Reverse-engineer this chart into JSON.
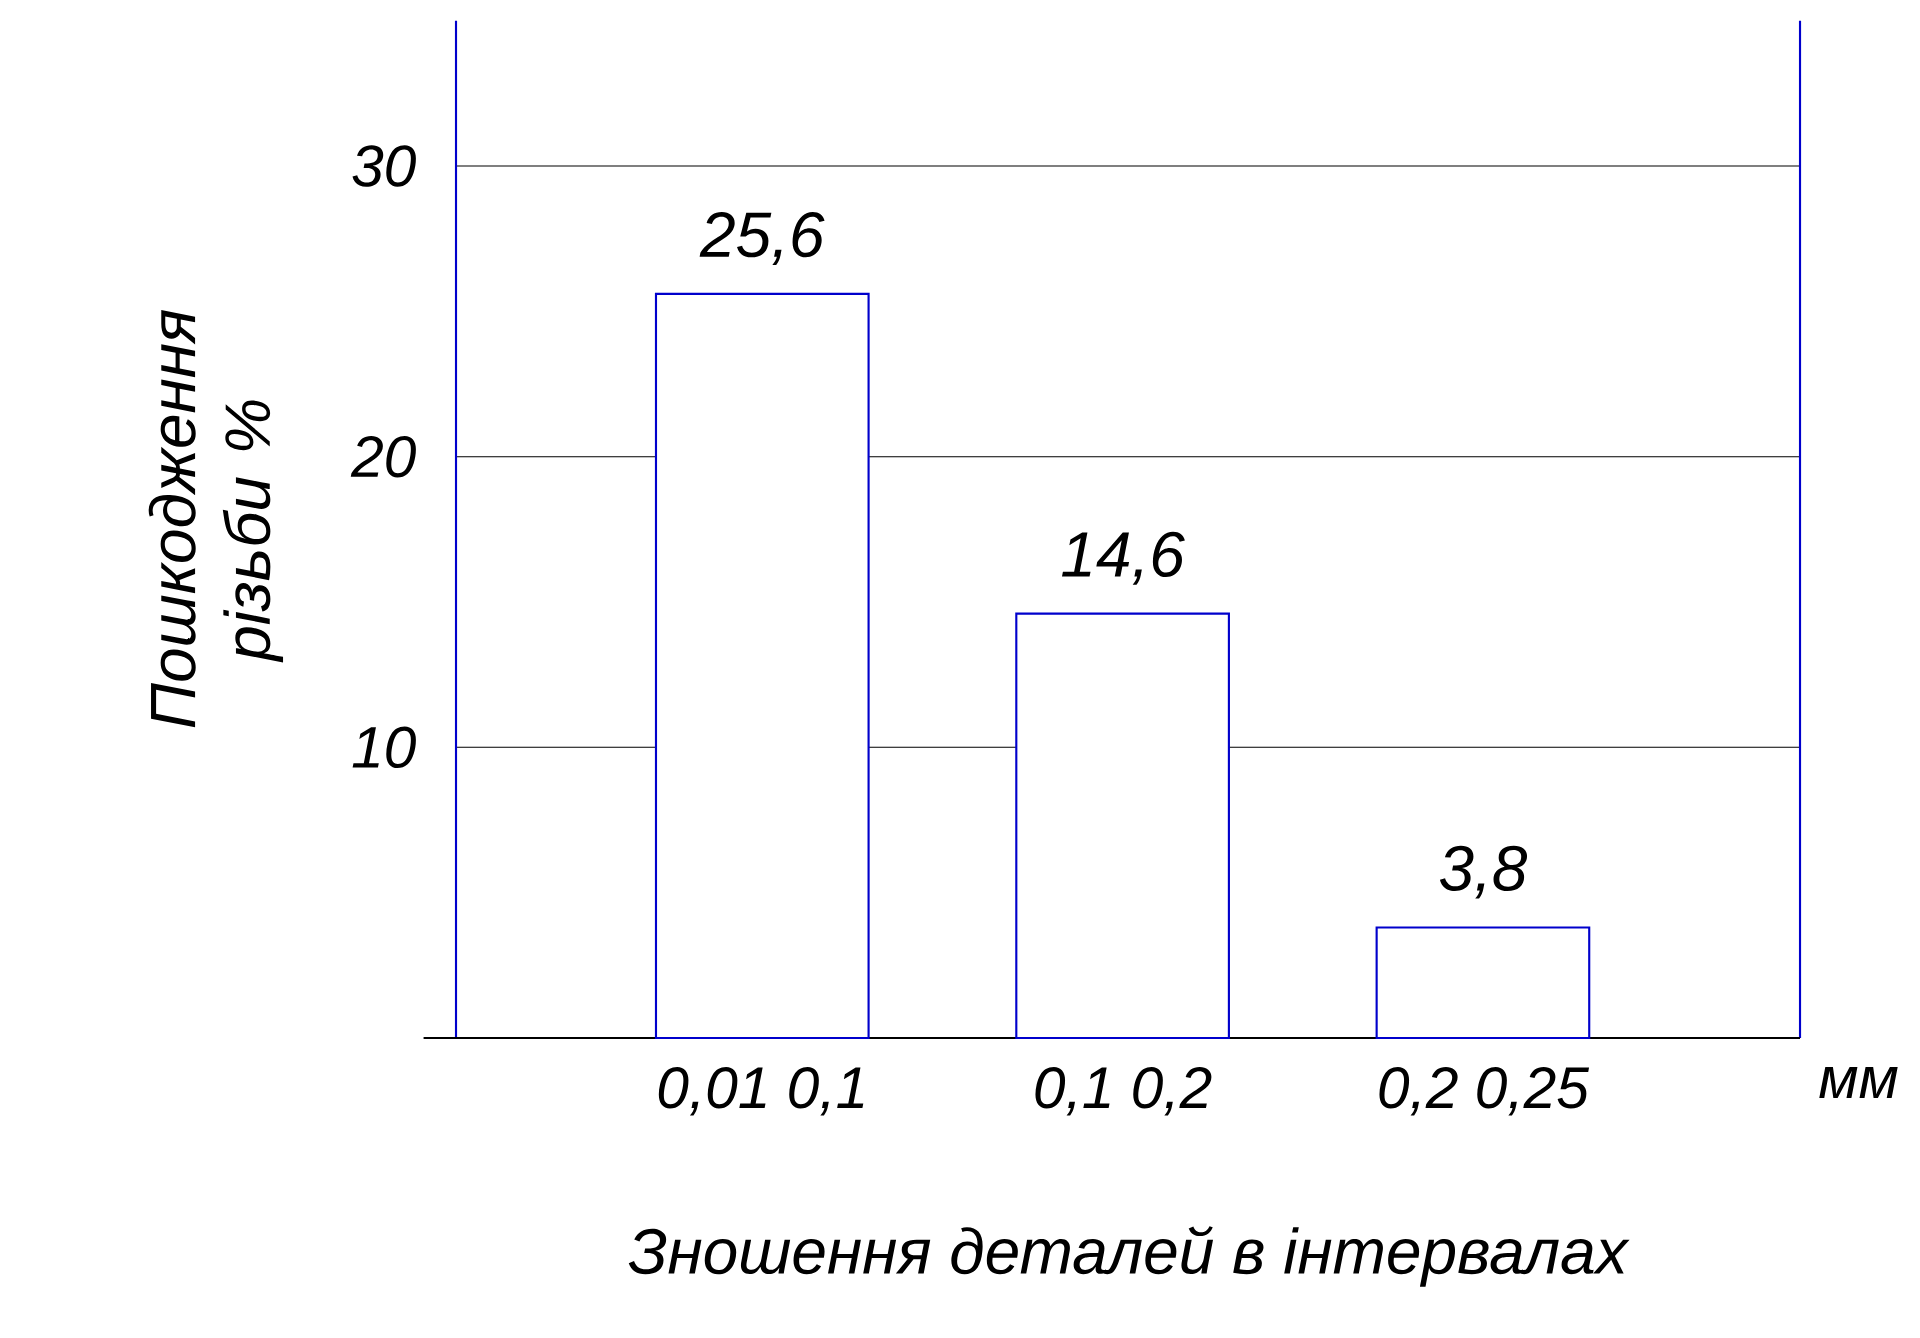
{
  "chart_data": {
    "type": "bar",
    "ylabel": "Пошкодження різьби %",
    "xlabel": "Зношення деталей в інтервалах",
    "categories": [
      "0,01 0,1",
      "0,1 0,2",
      "0,2 0,25"
    ],
    "values": [
      25.6,
      14.6,
      3.8
    ],
    "value_labels": [
      "25,6",
      "14,6",
      "3,8"
    ],
    "color": "#0000cc",
    "ylim": [
      0,
      35
    ],
    "yticks": [
      10,
      20,
      30
    ],
    "grid": "y",
    "annotations": [
      "мм"
    ]
  }
}
